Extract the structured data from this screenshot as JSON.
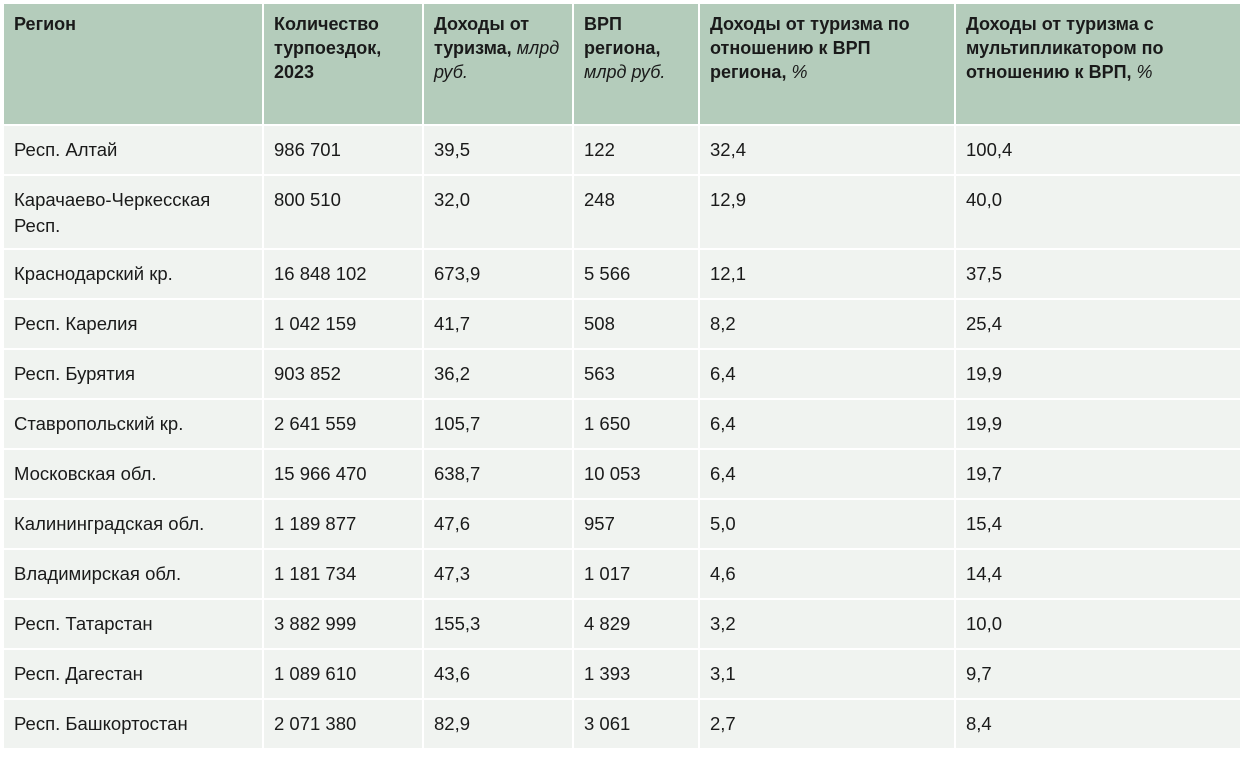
{
  "table": {
    "headers": [
      {
        "title": "Регион",
        "unit": ""
      },
      {
        "title": "Количество турпоездок, 2023",
        "unit": ""
      },
      {
        "title": "Доходы от туризма,",
        "unit": "млрд руб."
      },
      {
        "title": "ВРП региона,",
        "unit": "млрд руб."
      },
      {
        "title": "Доходы от туризма по отношению к ВРП региона,",
        "unit": "%"
      },
      {
        "title": "Доходы от туризма с мультипликатором по отношению к ВРП,",
        "unit": "%"
      }
    ],
    "rows": [
      [
        "Респ. Алтай",
        "986 701",
        "39,5",
        "122",
        "32,4",
        "100,4"
      ],
      [
        "Карачаево-Черкесская Респ.",
        "800 510",
        "32,0",
        "248",
        "12,9",
        "40,0"
      ],
      [
        "Краснодарский кр.",
        "16 848 102",
        "673,9",
        "5 566",
        "12,1",
        "37,5"
      ],
      [
        "Респ. Карелия",
        "1 042 159",
        "41,7",
        "508",
        "8,2",
        "25,4"
      ],
      [
        "Респ. Бурятия",
        "903 852",
        "36,2",
        "563",
        "6,4",
        "19,9"
      ],
      [
        "Ставропольский кр.",
        "2 641 559",
        "105,7",
        "1 650",
        "6,4",
        "19,9"
      ],
      [
        "Московская обл.",
        "15 966 470",
        "638,7",
        "10 053",
        "6,4",
        "19,7"
      ],
      [
        "Калининградская обл.",
        "1 189 877",
        "47,6",
        "957",
        "5,0",
        "15,4"
      ],
      [
        "Владимирская обл.",
        "1 181 734",
        "47,3",
        "1 017",
        "4,6",
        "14,4"
      ],
      [
        "Респ. Татарстан",
        "3 882 999",
        "155,3",
        "4 829",
        "3,2",
        "10,0"
      ],
      [
        "Респ. Дагестан",
        "1 089 610",
        "43,6",
        "1 393",
        "3,1",
        "9,7"
      ],
      [
        "Респ. Башкортостан",
        "2 071 380",
        "82,9",
        "3 061",
        "2,7",
        "8,4"
      ]
    ]
  },
  "colors": {
    "header_bg": "#b4ccbb",
    "row_bg": "#f0f3f0"
  }
}
